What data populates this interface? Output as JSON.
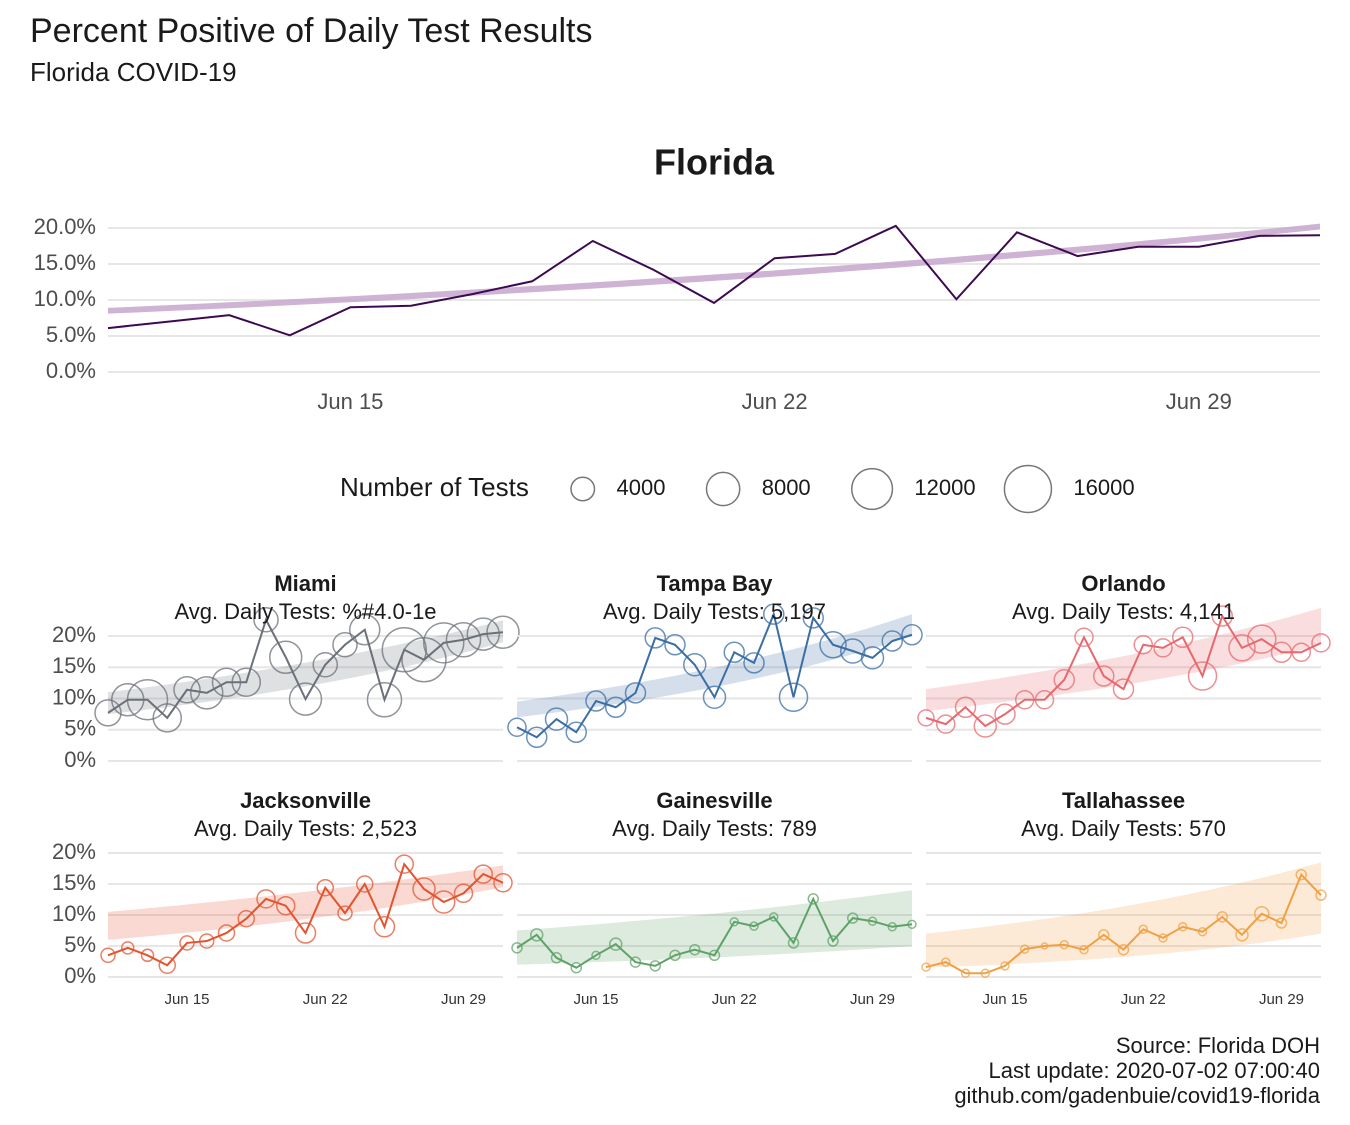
{
  "title": "Percent Positive of Daily Test Results",
  "subtitle": "Florida COVID-19",
  "caption": [
    "Source: Florida DOH",
    "Last update: 2020-07-02 07:00:40",
    "github.com/gadenbuie/covid19-florida"
  ],
  "chart_data": [
    {
      "type": "line",
      "title": "Florida",
      "categories": [
        "Jun 11",
        "Jun 12",
        "Jun 13",
        "Jun 14",
        "Jun 15",
        "Jun 16",
        "Jun 17",
        "Jun 18",
        "Jun 19",
        "Jun 20",
        "Jun 21",
        "Jun 22",
        "Jun 23",
        "Jun 24",
        "Jun 25",
        "Jun 26",
        "Jun 27",
        "Jun 28",
        "Jun 29",
        "Jun 30",
        "Jul 1"
      ],
      "values": [
        6.1,
        7.0,
        7.9,
        5.1,
        9.0,
        9.2,
        10.8,
        12.6,
        18.2,
        14.2,
        9.6,
        15.8,
        16.4,
        20.3,
        10.1,
        19.4,
        16.1,
        17.4,
        17.4,
        18.9,
        19.0
      ],
      "color": "#3d0a52",
      "trend_color": "#c6a6cc",
      "trend_low": [
        8.1,
        19.8
      ],
      "trend_high": [
        8.9,
        20.6
      ],
      "ylim": [
        0,
        20
      ],
      "yticks": [
        {
          "value": 0,
          "label": "0.0%"
        },
        {
          "value": 5,
          "label": "5.0%"
        },
        {
          "value": 10,
          "label": "10.0%"
        },
        {
          "value": 15,
          "label": "15.0%"
        },
        {
          "value": 20,
          "label": "20.0%"
        }
      ],
      "xticks": [
        "Jun 15",
        "Jun 22",
        "Jun 29"
      ],
      "grid": true,
      "size_legend": {
        "title": "Number of Tests",
        "values": [
          4000,
          8000,
          12000,
          16000
        ]
      }
    },
    {
      "type": "bubble-line",
      "title": "Miami",
      "subtitle": "Avg. Daily Tests: %#4.0-1e",
      "categories": [
        "Jun 11",
        "Jun 12",
        "Jun 13",
        "Jun 14",
        "Jun 15",
        "Jun 16",
        "Jun 17",
        "Jun 18",
        "Jun 19",
        "Jun 20",
        "Jun 21",
        "Jun 22",
        "Jun 23",
        "Jun 24",
        "Jun 25",
        "Jun 26",
        "Jun 27",
        "Jun 28",
        "Jun 29",
        "Jun 30",
        "Jul 1"
      ],
      "values": [
        7.7,
        9.8,
        9.8,
        6.9,
        11.4,
        10.9,
        12.6,
        12.6,
        22.6,
        16.6,
        9.9,
        15.4,
        18.6,
        21.0,
        9.8,
        17.8,
        16.2,
        18.9,
        19.4,
        20.3,
        20.6
      ],
      "sizes": [
        4900,
        7400,
        11600,
        5700,
        4900,
        7400,
        5700,
        5700,
        4200,
        7400,
        7400,
        4200,
        4200,
        6500,
        8400,
        14000,
        14000,
        11600,
        8400,
        7400,
        7400
      ],
      "color": "#6b7079",
      "trend_low": [
        7.5,
        19
      ],
      "trend_high": [
        11,
        22.5
      ],
      "ylim": [
        0,
        20
      ],
      "yticks": [
        {
          "value": 0,
          "label": "0%"
        },
        {
          "value": 5,
          "label": "5%"
        },
        {
          "value": 10,
          "label": "10%"
        },
        {
          "value": 15,
          "label": "15%"
        },
        {
          "value": 20,
          "label": "20%"
        }
      ],
      "grid": true
    },
    {
      "type": "bubble-line",
      "title": "Tampa Bay",
      "subtitle": "Avg. Daily Tests: 5,197",
      "categories": [
        "Jun 11",
        "Jun 12",
        "Jun 13",
        "Jun 14",
        "Jun 15",
        "Jun 16",
        "Jun 17",
        "Jun 18",
        "Jun 19",
        "Jun 20",
        "Jun 21",
        "Jun 22",
        "Jun 23",
        "Jun 24",
        "Jun 25",
        "Jun 26",
        "Jun 27",
        "Jun 28",
        "Jun 29",
        "Jun 30",
        "Jul 1"
      ],
      "values": [
        5.4,
        3.8,
        6.7,
        4.6,
        9.6,
        8.6,
        10.9,
        19.7,
        18.6,
        15.4,
        10.2,
        17.4,
        15.7,
        23.5,
        10.2,
        22.9,
        18.6,
        17.6,
        16.5,
        19.2,
        20.2
      ],
      "sizes": [
        2350,
        2900,
        3500,
        2900,
        2900,
        2900,
        2900,
        2900,
        2900,
        3500,
        3500,
        2900,
        2900,
        2900,
        5700,
        2900,
        4900,
        4170,
        3500,
        2900,
        2900
      ],
      "color": "#3a6ea5",
      "trend_low": [
        7,
        20
      ],
      "trend_high": [
        9.5,
        23.5
      ],
      "ylim": [
        0,
        20
      ],
      "grid": true
    },
    {
      "type": "bubble-line",
      "title": "Orlando",
      "subtitle": "Avg. Daily Tests: 4,141",
      "categories": [
        "Jun 11",
        "Jun 12",
        "Jun 13",
        "Jun 14",
        "Jun 15",
        "Jun 16",
        "Jun 17",
        "Jun 18",
        "Jun 19",
        "Jun 20",
        "Jun 21",
        "Jun 22",
        "Jun 23",
        "Jun 24",
        "Jun 25",
        "Jun 26",
        "Jun 27",
        "Jun 28",
        "Jun 29",
        "Jun 30",
        "Jul 1"
      ],
      "values": [
        6.9,
        5.9,
        8.6,
        5.6,
        7.5,
        9.8,
        9.8,
        13.0,
        19.8,
        13.6,
        11.5,
        18.6,
        18.1,
        19.8,
        13.6,
        23.2,
        18.1,
        19.5,
        17.4,
        17.4,
        18.9
      ],
      "sizes": [
        1850,
        2350,
        2900,
        3500,
        2900,
        2350,
        2350,
        2900,
        2350,
        2900,
        2900,
        2350,
        2350,
        2900,
        5700,
        2900,
        4900,
        5700,
        2900,
        2350,
        2350
      ],
      "color": "#e8686d",
      "trend_low": [
        8,
        18.5
      ],
      "trend_high": [
        11.5,
        24.5
      ],
      "ylim": [
        0,
        20
      ],
      "grid": true
    },
    {
      "type": "bubble-line",
      "title": "Jacksonville",
      "subtitle": "Avg. Daily Tests: 2,523",
      "categories": [
        "Jun 11",
        "Jun 12",
        "Jun 13",
        "Jun 14",
        "Jun 15",
        "Jun 16",
        "Jun 17",
        "Jun 18",
        "Jun 19",
        "Jun 20",
        "Jun 21",
        "Jun 22",
        "Jun 23",
        "Jun 24",
        "Jun 25",
        "Jun 26",
        "Jun 27",
        "Jun 28",
        "Jun 29",
        "Jun 30",
        "Jul 1"
      ],
      "values": [
        3.5,
        4.7,
        3.5,
        1.9,
        5.5,
        5.8,
        7.1,
        9.4,
        12.6,
        11.5,
        7.1,
        14.4,
        10.3,
        15.0,
        8.1,
        18.2,
        14.2,
        12.1,
        13.5,
        16.6,
        15.2
      ],
      "sizes": [
        1420,
        1040,
        1040,
        1850,
        1420,
        1420,
        1850,
        1850,
        2350,
        2350,
        2900,
        1850,
        1420,
        1850,
        2900,
        2350,
        3500,
        3500,
        2350,
        2350,
        2350
      ],
      "color": "#e4532e",
      "trend_low": [
        6,
        14.5
      ],
      "trend_high": [
        10.5,
        18
      ],
      "ylim": [
        0,
        20
      ],
      "yticks": [
        {
          "value": 0,
          "label": "0%"
        },
        {
          "value": 5,
          "label": "5%"
        },
        {
          "value": 10,
          "label": "10%"
        },
        {
          "value": 15,
          "label": "15%"
        },
        {
          "value": 20,
          "label": "20%"
        }
      ],
      "xticks": [
        "Jun 15",
        "Jun 22",
        "Jun 29"
      ],
      "grid": true
    },
    {
      "type": "bubble-line",
      "title": "Gainesville",
      "subtitle": "Avg. Daily Tests: 789",
      "categories": [
        "Jun 11",
        "Jun 12",
        "Jun 13",
        "Jun 14",
        "Jun 15",
        "Jun 16",
        "Jun 17",
        "Jun 18",
        "Jun 19",
        "Jun 20",
        "Jun 21",
        "Jun 22",
        "Jun 23",
        "Jun 24",
        "Jun 25",
        "Jun 26",
        "Jun 27",
        "Jun 28",
        "Jun 29",
        "Jun 30",
        "Jul 1"
      ],
      "values": [
        4.7,
        6.8,
        3.1,
        1.5,
        3.5,
        5.3,
        2.4,
        1.8,
        3.5,
        4.4,
        3.5,
        8.9,
        8.2,
        9.7,
        5.5,
        12.6,
        5.8,
        9.5,
        9.0,
        8.1,
        8.5
      ],
      "sizes": [
        720,
        1040,
        720,
        720,
        460,
        1040,
        720,
        720,
        720,
        720,
        720,
        460,
        460,
        460,
        720,
        720,
        720,
        720,
        460,
        460,
        460
      ],
      "color": "#5fa268",
      "trend_low": [
        2,
        5
      ],
      "trend_high": [
        7.5,
        14
      ],
      "xticks": [
        "Jun 15",
        "Jun 22",
        "Jun 29"
      ],
      "ylim": [
        0,
        20
      ],
      "grid": true
    },
    {
      "type": "bubble-line",
      "title": "Tallahassee",
      "subtitle": "Avg. Daily Tests: 570",
      "categories": [
        "Jun 11",
        "Jun 12",
        "Jun 13",
        "Jun 14",
        "Jun 15",
        "Jun 16",
        "Jun 17",
        "Jun 18",
        "Jun 19",
        "Jun 20",
        "Jun 21",
        "Jun 22",
        "Jun 23",
        "Jun 24",
        "Jun 25",
        "Jun 26",
        "Jun 27",
        "Jun 28",
        "Jun 29",
        "Jun 30",
        "Jul 1"
      ],
      "values": [
        1.6,
        2.4,
        0.6,
        0.6,
        1.8,
        4.5,
        5.0,
        5.2,
        4.4,
        6.8,
        4.4,
        7.7,
        6.3,
        8.1,
        7.3,
        9.7,
        6.8,
        10.2,
        8.7,
        16.5,
        13.2
      ],
      "sizes": [
        460,
        460,
        460,
        460,
        460,
        460,
        260,
        460,
        460,
        720,
        720,
        460,
        460,
        460,
        460,
        720,
        1040,
        1420,
        720,
        720,
        720
      ],
      "color": "#f0a044",
      "trend_low": [
        1.5,
        7
      ],
      "trend_high": [
        7,
        18.5
      ],
      "xticks": [
        "Jun 15",
        "Jun 22",
        "Jun 29"
      ],
      "ylim": [
        0,
        20
      ],
      "grid": true
    }
  ]
}
